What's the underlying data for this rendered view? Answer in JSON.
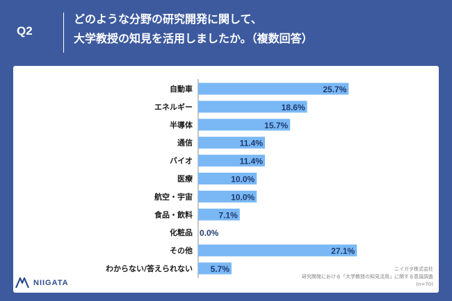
{
  "header": {
    "q_label": "Q2",
    "title_line1": "どのような分野の研究開発に関して、",
    "title_line2": "大学教授の知見を活用しましたか。（複数回答）"
  },
  "footer": {
    "brand": "NIIGATA",
    "company": "ニイガタ株式会社",
    "survey": "研究開発における「大学教授の知見活用」に関する意識調査",
    "sample": "(n=70)"
  },
  "colors": {
    "background": "#3d5a9e",
    "bar": "#7ab8f5",
    "label_text": "#1a1a1a",
    "value_text": "#1f3a6e"
  },
  "chart_data": {
    "type": "bar",
    "orientation": "horizontal",
    "categories": [
      "自動車",
      "エネルギー",
      "半導体",
      "通信",
      "バイオ",
      "医療",
      "航空・宇宙",
      "食品・飲料",
      "化粧品",
      "その他",
      "わからない/答えられない"
    ],
    "values": [
      25.7,
      18.6,
      15.7,
      11.4,
      11.4,
      10.0,
      10.0,
      7.1,
      0.0,
      27.1,
      5.7
    ],
    "value_labels": [
      "25.7%",
      "18.6%",
      "15.7%",
      "11.4%",
      "11.4%",
      "10.0%",
      "10.0%",
      "7.1%",
      "0.0%",
      "27.1%",
      "5.7%"
    ],
    "xlim": [
      0,
      28.5
    ],
    "grid": false
  }
}
